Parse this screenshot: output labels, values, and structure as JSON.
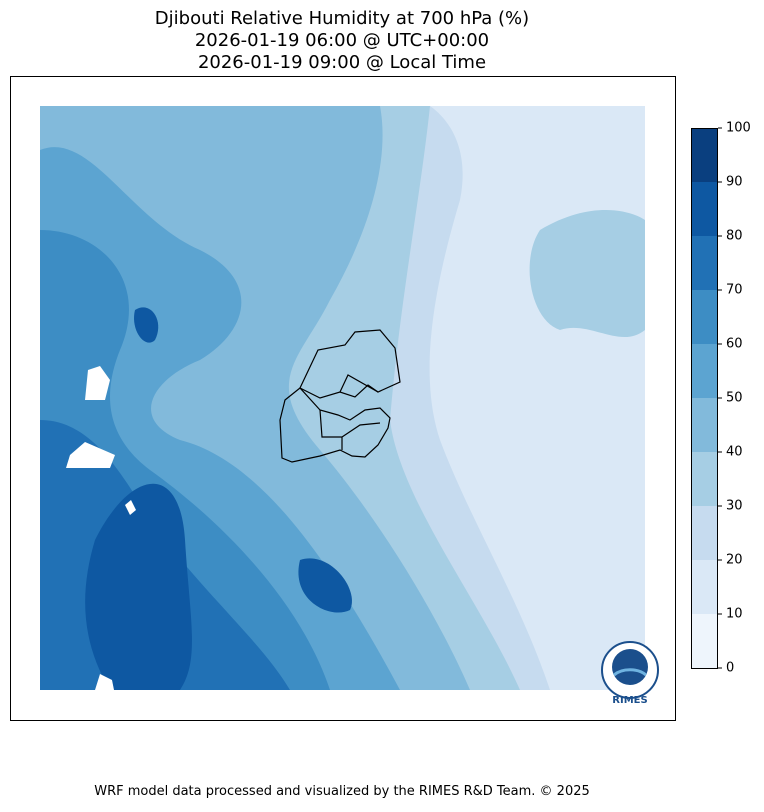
{
  "header": {
    "lines": [
      "Djibouti Relative Humidity at 700 hPa (%)",
      "2026-01-19 06:00 @ UTC+00:00",
      "2026-01-19 09:00 @ Local Time"
    ]
  },
  "colorbar": {
    "levels": [
      0,
      10,
      20,
      30,
      40,
      50,
      60,
      70,
      80,
      90,
      100
    ],
    "colors": [
      "#eef5fc",
      "#dae8f6",
      "#c6dbef",
      "#a6cee4",
      "#82badb",
      "#5ca4d1",
      "#3d8dc4",
      "#2171b5",
      "#0e58a2",
      "#0a3f7f"
    ]
  },
  "logo": {
    "label": "RIMES"
  },
  "footer": "WRF model data processed and visualized by the RIMES R&D Team. © 2025"
}
